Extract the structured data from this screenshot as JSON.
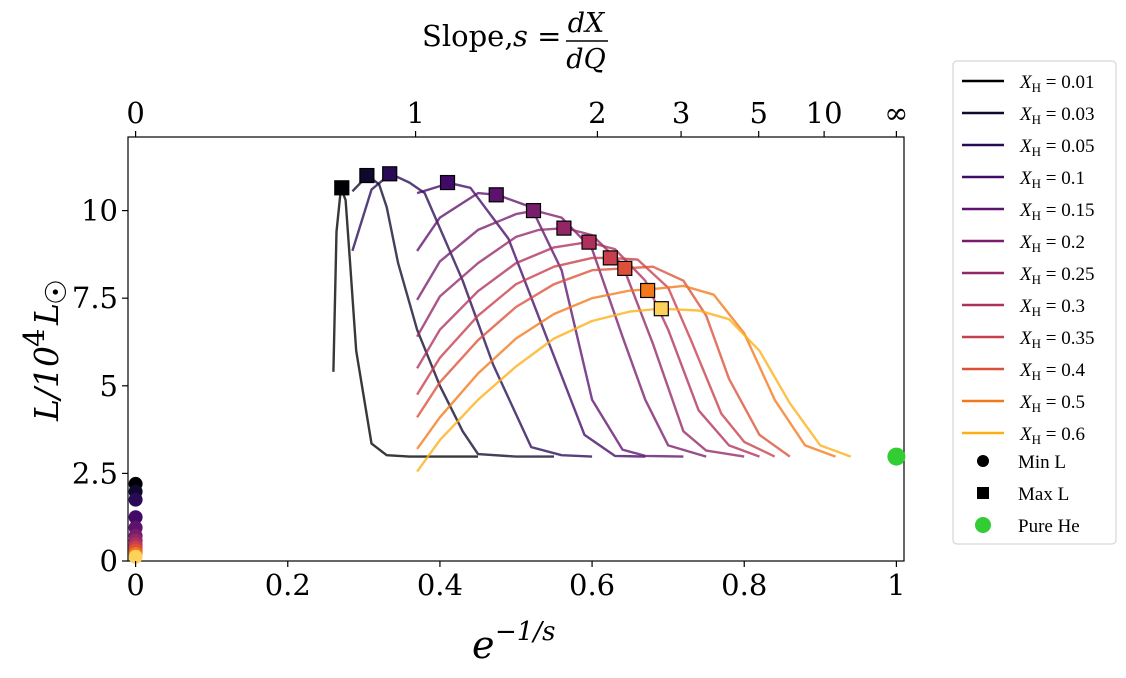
{
  "chart_data": {
    "type": "line",
    "title": "Slope, s = dX/dQ",
    "title_parts": {
      "word": "Slope,",
      "lhs": "s =",
      "numerator": "dX",
      "denominator": "dQ"
    },
    "xlabel": "e^{-1/s}",
    "xlabel_parts": {
      "base": "e",
      "exponent": "−1/s"
    },
    "ylabel": "L/10^4 L☉",
    "ylabel_parts": {
      "main": "L/10",
      "exponent": "4",
      "unit": "L",
      "unit_symbol": "☉"
    },
    "xlim": [
      -0.01,
      1.01
    ],
    "ylim": [
      0,
      12.1
    ],
    "x_ticks": [
      {
        "value": 0,
        "label": "0"
      },
      {
        "value": 0.2,
        "label": "0.2"
      },
      {
        "value": 0.4,
        "label": "0.4"
      },
      {
        "value": 0.6,
        "label": "0.6"
      },
      {
        "value": 0.8,
        "label": "0.8"
      },
      {
        "value": 1,
        "label": "1"
      }
    ],
    "y_ticks": [
      {
        "value": 0,
        "label": "0"
      },
      {
        "value": 2.5,
        "label": "2.5"
      },
      {
        "value": 5,
        "label": "5"
      },
      {
        "value": 7.5,
        "label": "7.5"
      },
      {
        "value": 10,
        "label": "10"
      }
    ],
    "top_ticks": [
      {
        "value": 0,
        "label": "0"
      },
      {
        "value": 0.368,
        "label": "1"
      },
      {
        "value": 0.607,
        "label": "2"
      },
      {
        "value": 0.717,
        "label": "3"
      },
      {
        "value": 0.819,
        "label": "5"
      },
      {
        "value": 0.905,
        "label": "10"
      },
      {
        "value": 1,
        "label": "∞"
      }
    ],
    "grid": false,
    "legend_position": "outside-right",
    "series": [
      {
        "name": "X_H = 0.01",
        "color": "#000004",
        "x": [
          0.26,
          0.264,
          0.27,
          0.276,
          0.282,
          0.29,
          0.31,
          0.33,
          0.36,
          0.4,
          0.45
        ],
        "y": [
          5.4,
          9.4,
          10.65,
          10.3,
          8.5,
          6.0,
          3.35,
          3.02,
          2.98,
          2.98,
          2.98
        ]
      },
      {
        "name": "X_H = 0.03",
        "color": "#0f092e",
        "x": [
          0.285,
          0.305,
          0.32,
          0.33,
          0.345,
          0.37,
          0.4,
          0.43,
          0.45,
          0.5,
          0.55
        ],
        "y": [
          10.55,
          11.0,
          10.75,
          10.1,
          8.5,
          6.6,
          5.0,
          3.7,
          3.05,
          2.98,
          2.98
        ]
      },
      {
        "name": "X_H = 0.05",
        "color": "#280b54",
        "x": [
          0.285,
          0.31,
          0.335,
          0.36,
          0.38,
          0.43,
          0.47,
          0.52,
          0.56,
          0.6
        ],
        "y": [
          8.85,
          10.6,
          11.05,
          10.8,
          10.5,
          8.0,
          5.6,
          3.25,
          3.02,
          2.98
        ]
      },
      {
        "name": "X_H = 0.1",
        "color": "#420a68",
        "x": [
          0.37,
          0.4,
          0.41,
          0.44,
          0.49,
          0.54,
          0.59,
          0.63,
          0.67
        ],
        "y": [
          10.5,
          10.7,
          10.8,
          10.65,
          9.2,
          6.4,
          3.6,
          3.0,
          2.98
        ]
      },
      {
        "name": "X_H = 0.15",
        "color": "#5d126e",
        "x": [
          0.37,
          0.4,
          0.45,
          0.475,
          0.52,
          0.56,
          0.6,
          0.64,
          0.67,
          0.72
        ],
        "y": [
          8.85,
          9.8,
          10.5,
          10.45,
          10.1,
          8.3,
          4.6,
          3.18,
          3.0,
          2.98
        ]
      },
      {
        "name": "X_H = 0.2",
        "color": "#781c6d",
        "x": [
          0.37,
          0.4,
          0.45,
          0.5,
          0.525,
          0.56,
          0.6,
          0.64,
          0.67,
          0.7,
          0.75
        ],
        "y": [
          7.45,
          8.55,
          9.45,
          9.9,
          10.0,
          9.8,
          8.9,
          6.4,
          4.6,
          3.3,
          2.98
        ]
      },
      {
        "name": "X_H = 0.25",
        "color": "#932667",
        "x": [
          0.37,
          0.4,
          0.45,
          0.5,
          0.53,
          0.565,
          0.6,
          0.64,
          0.68,
          0.72,
          0.75,
          0.8
        ],
        "y": [
          6.4,
          7.55,
          8.5,
          9.25,
          9.45,
          9.5,
          9.3,
          8.45,
          6.2,
          3.7,
          3.15,
          2.98
        ]
      },
      {
        "name": "X_H = 0.3",
        "color": "#ae305c",
        "x": [
          0.37,
          0.4,
          0.45,
          0.5,
          0.55,
          0.595,
          0.63,
          0.67,
          0.7,
          0.74,
          0.78,
          0.82
        ],
        "y": [
          5.5,
          6.6,
          7.7,
          8.5,
          8.95,
          9.1,
          8.9,
          8.0,
          6.6,
          4.3,
          3.3,
          2.98
        ]
      },
      {
        "name": "X_H = 0.35",
        "color": "#c73e4c",
        "x": [
          0.37,
          0.4,
          0.45,
          0.5,
          0.55,
          0.6,
          0.624,
          0.66,
          0.7,
          0.73,
          0.77,
          0.8,
          0.84
        ],
        "y": [
          4.75,
          5.8,
          7.0,
          7.9,
          8.4,
          8.65,
          8.65,
          8.6,
          7.8,
          6.3,
          4.2,
          3.4,
          2.98
        ]
      },
      {
        "name": "X_H = 0.4",
        "color": "#dc5039",
        "x": [
          0.37,
          0.4,
          0.45,
          0.5,
          0.55,
          0.6,
          0.642,
          0.68,
          0.72,
          0.75,
          0.78,
          0.82,
          0.86
        ],
        "y": [
          4.1,
          5.1,
          6.3,
          7.25,
          7.9,
          8.3,
          8.35,
          8.4,
          8.0,
          7.0,
          5.2,
          3.6,
          2.98
        ]
      },
      {
        "name": "X_H = 0.5",
        "color": "#f37819",
        "x": [
          0.37,
          0.4,
          0.45,
          0.5,
          0.55,
          0.6,
          0.65,
          0.675,
          0.72,
          0.76,
          0.8,
          0.84,
          0.88,
          0.92
        ],
        "y": [
          3.2,
          4.1,
          5.35,
          6.35,
          7.05,
          7.5,
          7.72,
          7.75,
          7.85,
          7.6,
          6.5,
          4.6,
          3.3,
          2.98
        ]
      },
      {
        "name": "X_H = 0.6",
        "color": "#fcb016",
        "x": [
          0.37,
          0.4,
          0.45,
          0.5,
          0.55,
          0.6,
          0.65,
          0.69,
          0.74,
          0.78,
          0.82,
          0.86,
          0.9,
          0.94
        ],
        "y": [
          2.55,
          3.45,
          4.6,
          5.55,
          6.35,
          6.85,
          7.12,
          7.2,
          7.15,
          6.9,
          6.0,
          4.5,
          3.3,
          2.98
        ]
      }
    ],
    "max_L_points": [
      {
        "series": "X_H = 0.01",
        "x": 0.271,
        "y": 10.65,
        "color": "#000004"
      },
      {
        "series": "X_H = 0.03",
        "x": 0.304,
        "y": 11.0,
        "color": "#0f092e"
      },
      {
        "series": "X_H = 0.05",
        "x": 0.334,
        "y": 11.05,
        "color": "#280b54"
      },
      {
        "series": "X_H = 0.1",
        "x": 0.41,
        "y": 10.8,
        "color": "#420a68"
      },
      {
        "series": "X_H = 0.15",
        "x": 0.474,
        "y": 10.45,
        "color": "#5d126e"
      },
      {
        "series": "X_H = 0.2",
        "x": 0.523,
        "y": 10.0,
        "color": "#781c6d"
      },
      {
        "series": "X_H = 0.25",
        "x": 0.563,
        "y": 9.5,
        "color": "#932667"
      },
      {
        "series": "X_H = 0.3",
        "x": 0.596,
        "y": 9.1,
        "color": "#ae305c"
      },
      {
        "series": "X_H = 0.35",
        "x": 0.624,
        "y": 8.65,
        "color": "#c73e4c"
      },
      {
        "series": "X_H = 0.4",
        "x": 0.643,
        "y": 8.35,
        "color": "#dc5039"
      },
      {
        "series": "X_H = 0.5",
        "x": 0.673,
        "y": 7.72,
        "color": "#f37819"
      },
      {
        "series": "X_H = 0.6",
        "x": 0.691,
        "y": 7.2,
        "color": "#fcd25a"
      }
    ],
    "min_L_points": [
      {
        "series": "X_H = 0.01",
        "x": 0,
        "y": 2.2,
        "color": "#000004"
      },
      {
        "series": "X_H = 0.03",
        "x": 0,
        "y": 1.98,
        "color": "#0f092e"
      },
      {
        "series": "X_H = 0.05",
        "x": 0,
        "y": 1.75,
        "color": "#280b54"
      },
      {
        "series": "X_H = 0.1",
        "x": 0,
        "y": 1.25,
        "color": "#420a68"
      },
      {
        "series": "X_H = 0.15",
        "x": 0,
        "y": 0.95,
        "color": "#5d126e"
      },
      {
        "series": "X_H = 0.2",
        "x": 0,
        "y": 0.72,
        "color": "#781c6d"
      },
      {
        "series": "X_H = 0.25",
        "x": 0,
        "y": 0.58,
        "color": "#932667"
      },
      {
        "series": "X_H = 0.3",
        "x": 0,
        "y": 0.47,
        "color": "#ae305c"
      },
      {
        "series": "X_H = 0.35",
        "x": 0,
        "y": 0.38,
        "color": "#c73e4c"
      },
      {
        "series": "X_H = 0.4",
        "x": 0,
        "y": 0.3,
        "color": "#dc5039"
      },
      {
        "series": "X_H = 0.5",
        "x": 0,
        "y": 0.2,
        "color": "#f37819"
      },
      {
        "series": "X_H = 0.6",
        "x": 0,
        "y": 0.12,
        "color": "#fcd25a"
      }
    ],
    "pure_he_point": {
      "x": 1,
      "y": 2.98,
      "color": "#32cd32"
    },
    "legend": {
      "line_entries": [
        {
          "var": "X",
          "sub": "H",
          "rest": " = 0.01",
          "color": "#000004"
        },
        {
          "var": "X",
          "sub": "H",
          "rest": " = 0.03",
          "color": "#0f092e"
        },
        {
          "var": "X",
          "sub": "H",
          "rest": " = 0.05",
          "color": "#280b54"
        },
        {
          "var": "X",
          "sub": "H",
          "rest": " = 0.1",
          "color": "#420a68"
        },
        {
          "var": "X",
          "sub": "H",
          "rest": " = 0.15",
          "color": "#5d126e"
        },
        {
          "var": "X",
          "sub": "H",
          "rest": " = 0.2",
          "color": "#781c6d"
        },
        {
          "var": "X",
          "sub": "H",
          "rest": " = 0.25",
          "color": "#932667"
        },
        {
          "var": "X",
          "sub": "H",
          "rest": " = 0.3",
          "color": "#ae305c"
        },
        {
          "var": "X",
          "sub": "H",
          "rest": " = 0.35",
          "color": "#c73e4c"
        },
        {
          "var": "X",
          "sub": "H",
          "rest": " = 0.4",
          "color": "#dc5039"
        },
        {
          "var": "X",
          "sub": "H",
          "rest": " = 0.5",
          "color": "#f37819"
        },
        {
          "var": "X",
          "sub": "H",
          "rest": " = 0.6",
          "color": "#fcb016"
        }
      ],
      "marker_entries": [
        {
          "label": "Min L",
          "marker": "circle",
          "color": "#000000"
        },
        {
          "label": "Max L",
          "marker": "square",
          "color": "#000000"
        },
        {
          "label": "Pure He",
          "marker": "circle",
          "color": "#32cd32"
        }
      ]
    }
  }
}
